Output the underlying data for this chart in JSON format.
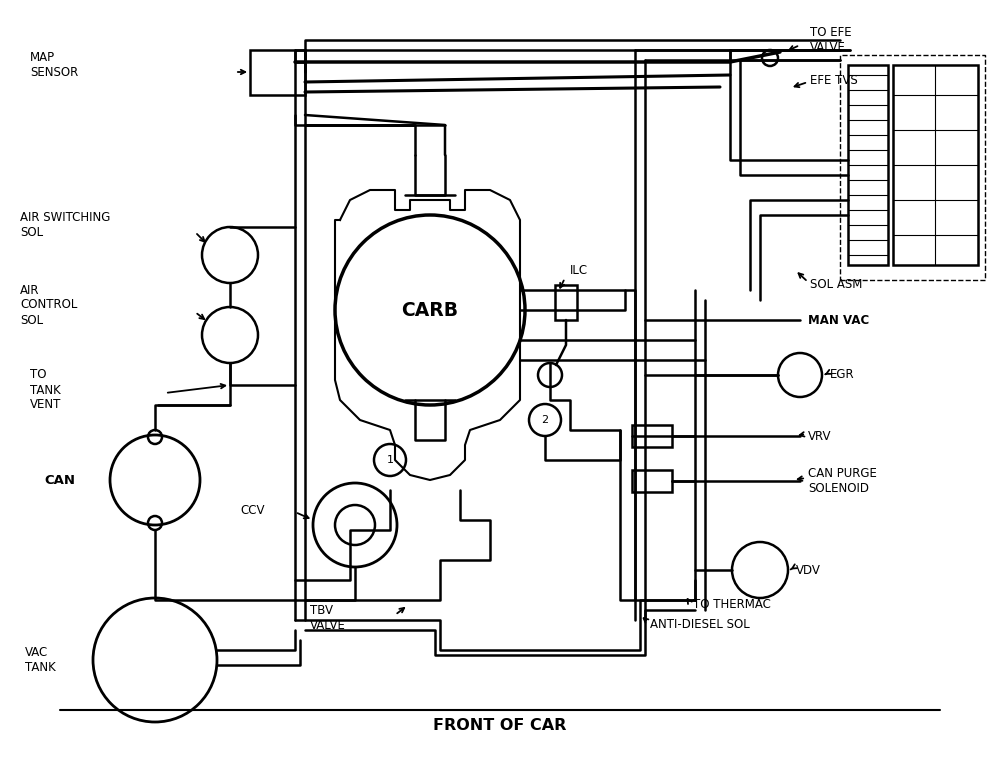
{
  "bg_color": "#ffffff",
  "lc": "#000000",
  "tc": "#000000",
  "lw": 1.8,
  "fs": 8.5,
  "labels": {
    "MAP_SENSOR": "MAP\nSENSOR",
    "AIR_SWITCHING_SOL": "AIR SWITCHING\nSOL",
    "AIR_CONTROL_SOL": "AIR\nCONTROL\nSOL",
    "TO_TANK_VENT": "TO\nTANK\nVENT",
    "CAN": "CAN",
    "CCV": "CCV",
    "TBV_VALVE": "TBV\nVALVE",
    "VAC_TANK": "VAC\nTANK",
    "FRONT_OF_CAR": "FRONT OF CAR",
    "CARB": "CARB",
    "ILC": "ILC",
    "TO_EFE_VALVE": "TO EFE\nVALVE",
    "EFE_TVS": "EFE TVS",
    "SOL_ASM": "SOL ASM",
    "MAN_VAC": "MAN VAC",
    "EGR": "EGR",
    "VRV": "VRV",
    "CAN_PURGE_SOLENOID": "CAN PURGE\nSOLENOID",
    "VDV": "VDV",
    "TO_THERMAC": "TO THERMAC",
    "ANTI_DIESEL_SOL": "ANTI-DIESEL SOL"
  }
}
